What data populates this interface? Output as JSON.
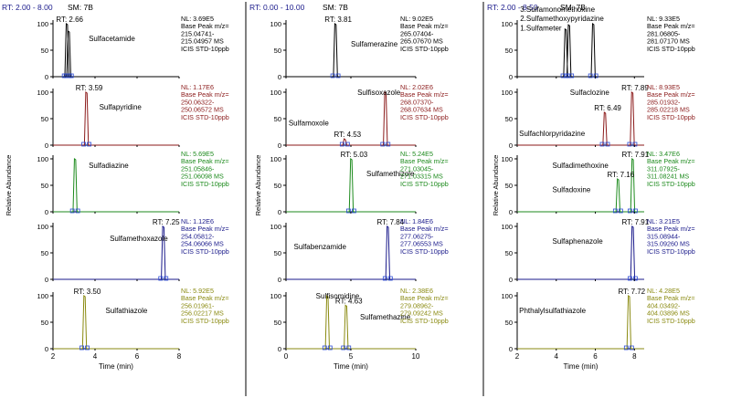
{
  "chart_data": {
    "type": "line",
    "description_label": "Relative Abundance",
    "panels": [
      {
        "header": {
          "range": "RT: 2.00 - 8.00",
          "sm": "SM: 7B"
        },
        "xlim": [
          2,
          8
        ],
        "xticks": [
          2,
          4,
          6,
          8
        ],
        "xlabel": "Time (min)",
        "yticks": [
          0,
          50,
          100
        ],
        "traces": [
          {
            "color": "#000000",
            "names": [
              {
                "text": "Sulfacetamide",
                "x": 3.7,
                "y": 72
              }
            ],
            "peaks": [
              {
                "rt": 2.66,
                "height": 100,
                "label": "RT: 2.66"
              },
              {
                "rt": 2.75,
                "height": 86
              }
            ],
            "info": [
              "NL: 3.69E5",
              "Base Peak m/z=",
              "215.04741-",
              "215.04957 MS",
              "ICIS STD-10ppb"
            ]
          },
          {
            "color": "#8b1a1a",
            "names": [
              {
                "text": "Sulfapyridine",
                "x": 4.2,
                "y": 72
              }
            ],
            "peaks": [
              {
                "rt": 3.59,
                "height": 100,
                "label": "RT: 3.59"
              }
            ],
            "info": [
              "NL: 1.17E6",
              "Base Peak m/z=",
              "250.06322-",
              "250.06572 MS",
              "ICIS STD-10ppb"
            ]
          },
          {
            "color": "#1c8a1c",
            "names": [
              {
                "text": "Sulfadiazine",
                "x": 3.7,
                "y": 88
              }
            ],
            "peaks": [
              {
                "rt": 3.05,
                "height": 100
              }
            ],
            "info": [
              "NL: 5.69E5",
              "Base Peak m/z=",
              "251.05846-",
              "251.06098 MS",
              "ICIS STD-10ppb"
            ]
          },
          {
            "color": "#1a1a8b",
            "names": [
              {
                "text": "Sulfamethoxazole",
                "x": 4.7,
                "y": 78
              }
            ],
            "peaks": [
              {
                "rt": 7.25,
                "height": 100,
                "label": "RT: 7.25"
              }
            ],
            "info": [
              "NL: 1.12E6",
              "Base Peak m/z=",
              "254.05812-",
              "254.06066 MS",
              "ICIS STD-10ppb"
            ]
          },
          {
            "color": "#8a8a10",
            "names": [
              {
                "text": "Sulfathiazole",
                "x": 4.5,
                "y": 72
              }
            ],
            "peaks": [
              {
                "rt": 3.5,
                "height": 100,
                "label": "RT: 3.50"
              }
            ],
            "info": [
              "NL: 5.92E5",
              "Base Peak m/z=",
              "256.01961-",
              "256.02217 MS",
              "ICIS STD-10ppb"
            ]
          }
        ]
      },
      {
        "header": {
          "range": "RT: 0.00 - 10.00",
          "sm": "SM: 7B"
        },
        "xlim": [
          0,
          10
        ],
        "xticks": [
          0,
          5,
          10
        ],
        "xlabel": "Time (min)",
        "yticks": [
          0,
          50,
          100
        ],
        "traces": [
          {
            "color": "#000000",
            "names": [
              {
                "text": "Sulfamerazine",
                "x": 5.0,
                "y": 62
              }
            ],
            "peaks": [
              {
                "rt": 3.81,
                "height": 100,
                "label": "RT: 3.81"
              }
            ],
            "info": [
              "NL: 9.02E5",
              "Base Peak m/z=",
              "265.07404-",
              "265.07670 MS",
              "ICIS STD-10ppb"
            ]
          },
          {
            "color": "#8b1a1a",
            "names": [
              {
                "text": "Sulfisoxazole",
                "x": 5.5,
                "y": 100
              },
              {
                "text": "Sulfamoxole",
                "x": 0.2,
                "y": 42
              }
            ],
            "peaks": [
              {
                "rt": 4.53,
                "height": 12,
                "label": "RT: 4.53"
              },
              {
                "rt": 7.66,
                "height": 100
              }
            ],
            "info": [
              "NL: 2.02E6",
              "Base Peak m/z=",
              "268.07370-",
              "268.07634 MS",
              "ICIS STD-10ppb"
            ]
          },
          {
            "color": "#1c8a1c",
            "names": [
              {
                "text": "Sulfamethizole",
                "x": 6.2,
                "y": 72
              }
            ],
            "peaks": [
              {
                "rt": 5.03,
                "height": 100,
                "label": "RT: 5.03"
              }
            ],
            "info": [
              "NL: 5.24E5",
              "Base Peak m/z=",
              "271.03045-",
              "271.03315 MS",
              "ICIS STD-10ppb"
            ]
          },
          {
            "color": "#1a1a8b",
            "names": [
              {
                "text": "Sulfabenzamide",
                "x": 0.6,
                "y": 62
              }
            ],
            "peaks": [
              {
                "rt": 7.84,
                "height": 100,
                "label": "RT: 7.84"
              }
            ],
            "info": [
              "NL: 1.84E6",
              "Base Peak m/z=",
              "277.06275-",
              "277.06553 MS",
              "ICIS STD-10ppb"
            ]
          },
          {
            "color": "#8a8a10",
            "names": [
              {
                "text": "Sulfisomidine",
                "x": 2.3,
                "y": 100
              },
              {
                "text": "Sulfamethazine",
                "x": 5.7,
                "y": 60
              }
            ],
            "peaks": [
              {
                "rt": 3.19,
                "height": 100
              },
              {
                "rt": 4.63,
                "height": 82,
                "label": "RT: 4.63"
              }
            ],
            "info": [
              "NL: 2.38E6",
              "Base Peak m/z=",
              "279.08962-",
              "279.09242 MS",
              "ICIS STD-10ppb"
            ]
          }
        ]
      },
      {
        "header": {
          "range": "RT: 2.00 - 8.50",
          "sm": "SM: 7B"
        },
        "xlim": [
          2,
          8.5
        ],
        "xticks": [
          2,
          4,
          6,
          8
        ],
        "xlabel": "Time (min)",
        "yticks": [
          0,
          50,
          100
        ],
        "traces": [
          {
            "color": "#000000",
            "names": [
              {
                "text": "3.Sulfamonomethoxine",
                "x": 2.15,
                "y": 128
              },
              {
                "text": "2.Sulfamethoxypyridazine",
                "x": 2.15,
                "y": 110
              },
              {
                "text": "1.Sulfameter",
                "x": 2.15,
                "y": 92
              }
            ],
            "peaks": [
              {
                "rt": 4.48,
                "height": 90
              },
              {
                "rt": 4.65,
                "height": 98
              },
              {
                "rt": 5.89,
                "height": 100
              }
            ],
            "info": [
              "NL: 9.33E5",
              "Base Peak m/z=",
              "281.06805-",
              "281.07170 MS",
              "ICIS STD-10ppb"
            ]
          },
          {
            "color": "#8b1a1a",
            "names": [
              {
                "text": "Sulfaclozine",
                "x": 4.7,
                "y": 100
              },
              {
                "text": "Sulfachlorpyridazine",
                "x": 2.1,
                "y": 22
              }
            ],
            "peaks": [
              {
                "rt": 6.49,
                "height": 62,
                "label": "RT: 6.49"
              },
              {
                "rt": 7.89,
                "height": 100,
                "label": "RT: 7.89"
              }
            ],
            "info": [
              "NL: 8.93E5",
              "Base Peak m/z=",
              "285.01932-",
              "285.02218 MS",
              "ICIS STD-10ppb"
            ]
          },
          {
            "color": "#1c8a1c",
            "names": [
              {
                "text": "Sulfadimethoxine",
                "x": 3.8,
                "y": 88
              },
              {
                "text": "Sulfadoxine",
                "x": 3.8,
                "y": 42
              }
            ],
            "peaks": [
              {
                "rt": 7.16,
                "height": 62,
                "label": "RT: 7.16"
              },
              {
                "rt": 7.91,
                "height": 100,
                "label": "RT: 7.91"
              }
            ],
            "info": [
              "NL: 3.47E6",
              "Base Peak m/z=",
              "311.07925-",
              "311.08241 MS",
              "ICIS STD-10ppb"
            ]
          },
          {
            "color": "#1a1a8b",
            "names": [
              {
                "text": "Sulfaphenazole",
                "x": 3.8,
                "y": 72
              }
            ],
            "peaks": [
              {
                "rt": 7.91,
                "height": 100,
                "label": "RT: 7.91"
              }
            ],
            "info": [
              "NL: 3.21E5",
              "Base Peak m/z=",
              "315.08944-",
              "315.09260 MS",
              "ICIS STD-10ppb"
            ]
          },
          {
            "color": "#8a8a10",
            "names": [
              {
                "text": "Phthalylsulfathiazole",
                "x": 2.1,
                "y": 72
              }
            ],
            "peaks": [
              {
                "rt": 7.72,
                "height": 100,
                "label": "RT: 7.72"
              }
            ],
            "info": [
              "NL: 4.28E5",
              "Base Peak m/z=",
              "404.03492-",
              "404.03896 MS",
              "ICIS STD-10ppb"
            ]
          }
        ]
      }
    ]
  }
}
